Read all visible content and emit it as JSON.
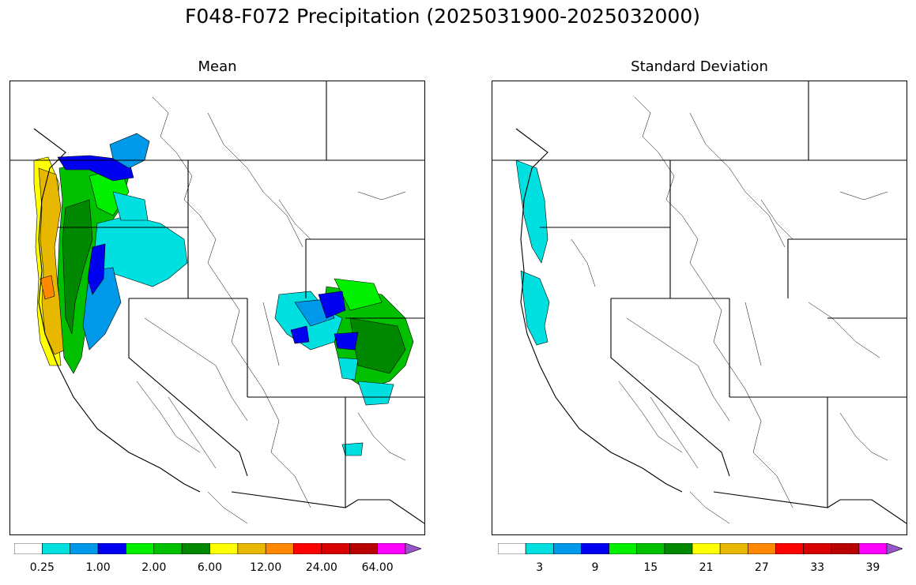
{
  "title": "F048-F072 Precipitation (2025031900-2025032000)",
  "panels": {
    "left": {
      "title": "Mean",
      "colorbar": {
        "colors": [
          "#ffffff",
          "#00e0e0",
          "#0098e8",
          "#0000f0",
          "#00f000",
          "#00c000",
          "#008800",
          "#ffff00",
          "#e8b800",
          "#ff8800",
          "#ff0000",
          "#d80000",
          "#b80000",
          "#ff00ff",
          "#9955cc"
        ],
        "tick_labels": [
          "0.25",
          "1.00",
          "2.00",
          "6.00",
          "12.00",
          "24.00",
          "64.00"
        ],
        "extend": "max"
      }
    },
    "right": {
      "title": "Standard Deviation",
      "colorbar": {
        "colors": [
          "#ffffff",
          "#00e0e0",
          "#0098e8",
          "#0000f0",
          "#00f000",
          "#00c000",
          "#008800",
          "#ffff00",
          "#e8b800",
          "#ff8800",
          "#ff0000",
          "#d80000",
          "#b80000",
          "#ff00ff",
          "#9955cc"
        ],
        "tick_labels": [
          "3",
          "9",
          "15",
          "21",
          "27",
          "33",
          "39"
        ],
        "extend": "max"
      }
    }
  }
}
